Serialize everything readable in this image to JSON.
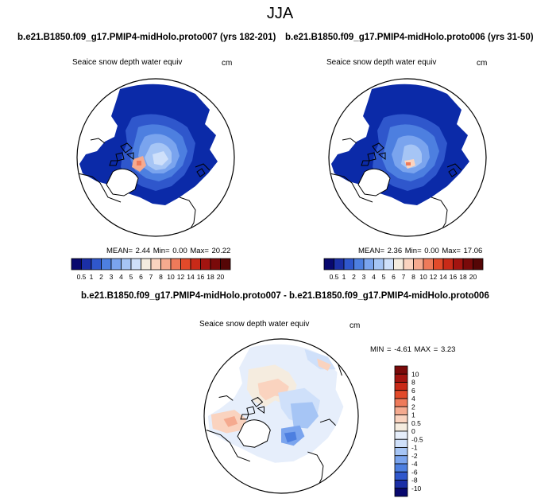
{
  "page": {
    "title": "JJA"
  },
  "panels": [
    {
      "title": "b.e21.B1850.f09_g17.PMIP4-midHolo.proto007 (yrs 182-201)",
      "variable": "Seaice snow depth water equiv",
      "units": "cm",
      "stats_text": "MEAN=   2.44  Min=   0.00  Max=   20.22",
      "stats": {
        "mean": 2.44,
        "min": 0.0,
        "max": 20.22
      }
    },
    {
      "title": "b.e21.B1850.f09_g17.PMIP4-midHolo.proto006 (yrs 31-50)",
      "variable": "Seaice snow depth water equiv",
      "units": "cm",
      "stats_text": "MEAN=   2.36  Min=   0.00  Max=   17.06",
      "stats": {
        "mean": 2.36,
        "min": 0.0,
        "max": 17.06
      }
    }
  ],
  "diff_panel": {
    "title": "b.e21.B1850.f09_g17.PMIP4-midHolo.proto007 - b.e21.B1850.f09_g17.PMIP4-midHolo.proto006",
    "variable": "Seaice snow depth water equiv",
    "units": "cm",
    "stats_text": "MIN =   -4.61 MAX =    3.23",
    "stats": {
      "min": -4.61,
      "max": 3.23
    }
  },
  "colorbar_top": {
    "labels": [
      "0.5",
      "1",
      "2",
      "3",
      "4",
      "5",
      "6",
      "7",
      "8",
      "10",
      "12",
      "14",
      "16",
      "18",
      "20"
    ],
    "colors": [
      "#08086e",
      "#1b2fa6",
      "#2f57cc",
      "#4d7fe0",
      "#7aa4ee",
      "#a6c5f5",
      "#cfe0fa",
      "#f5ecdf",
      "#fad3bf",
      "#f5aa8f",
      "#ee7a5a",
      "#e34a2a",
      "#c92a18",
      "#a31410",
      "#7a0a0a",
      "#550606"
    ]
  },
  "colorbar_diff": {
    "labels": [
      "10",
      "8",
      "6",
      "4",
      "2",
      "1",
      "0.5",
      "0",
      "-0.5",
      "-1",
      "-2",
      "-4",
      "-6",
      "-8",
      "-10"
    ],
    "colors": [
      "#7a0a0a",
      "#a31410",
      "#c92a18",
      "#e34a2a",
      "#ee7a5a",
      "#f5aa8f",
      "#fad3bf",
      "#f5ecdf",
      "#e6eefb",
      "#cfe0fa",
      "#a6c5f5",
      "#7aa4ee",
      "#4d7fe0",
      "#2f57cc",
      "#1b2fa6",
      "#08086e"
    ]
  }
}
